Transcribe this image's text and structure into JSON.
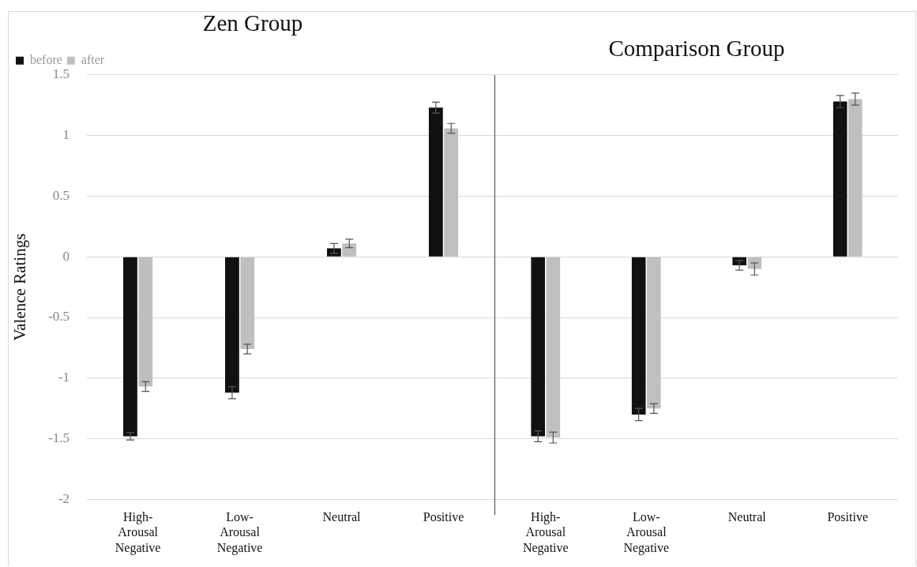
{
  "chart_data": [
    {
      "type": "bar",
      "title": "Zen Group",
      "ylabel": "Valence Ratings",
      "categories": [
        "High-Arousal Negative",
        "Low-Arousal Negative",
        "Neutral",
        "Positive"
      ],
      "series": [
        {
          "name": "before",
          "color": "#111111",
          "values": [
            -1.48,
            -1.12,
            0.07,
            1.23
          ],
          "errors": [
            0.03,
            0.05,
            0.04,
            0.045
          ]
        },
        {
          "name": "after",
          "color": "#bfbfbf",
          "values": [
            -1.07,
            -0.76,
            0.11,
            1.06
          ],
          "errors": [
            0.04,
            0.04,
            0.035,
            0.04
          ]
        }
      ],
      "ylim": [
        -2,
        1.5
      ],
      "yticks": [
        -2,
        -1.5,
        -1,
        -0.5,
        0,
        0.5,
        1,
        1.5
      ],
      "grid": "y",
      "legend": "top left"
    },
    {
      "type": "bar",
      "title": "Comparison Group",
      "categories": [
        "High-Arousal Negative",
        "Low-Arousal Negative",
        "Neutral",
        "Positive"
      ],
      "series": [
        {
          "color": "#111111",
          "values": [
            -1.48,
            -1.3,
            -0.07,
            1.28
          ],
          "errors": [
            0.045,
            0.05,
            0.04,
            0.05
          ]
        },
        {
          "color": "#bfbfbf",
          "values": [
            -1.49,
            -1.25,
            -0.1,
            1.3
          ],
          "errors": [
            0.045,
            0.04,
            0.05,
            0.05
          ]
        }
      ],
      "ylim": [
        -2,
        1.5
      ],
      "yticks": [
        -2,
        -1.5,
        -1,
        -0.5,
        0,
        0.5,
        1,
        1.5
      ],
      "grid": "y",
      "tick_labels": "x"
    }
  ]
}
